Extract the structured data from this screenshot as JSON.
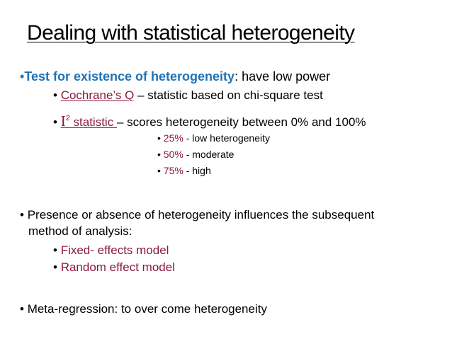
{
  "title": "Dealing with statistical heterogeneity",
  "bullet": "•",
  "b1": {
    "lead": "Test for existence of heterogeneity",
    "rest": ": have low power",
    "sub1": {
      "link": "Cochrane’s Q",
      "rest": " – statistic based on chi-square test"
    },
    "sub2": {
      "i_letter": "I",
      "sup": "2",
      "link": " statistic ",
      "rest": "– scores heterogeneity between 0% and 100%"
    },
    "levels": [
      {
        "pct": "25%",
        "label": " - low heterogeneity"
      },
      {
        "pct": "50%",
        "label": " - moderate"
      },
      {
        "pct": "75%",
        "label": " - high"
      }
    ]
  },
  "b2": {
    "line1": "Presence or absence of heterogeneity influences the subsequent",
    "line2": "method of analysis:",
    "models": [
      "Fixed- effects model",
      "Random effect model"
    ]
  },
  "b3": {
    "text": "Meta-regression: to over come heterogeneity"
  },
  "colors": {
    "accent_blue": "#1f73b7",
    "accent_red": "#8b1a3a"
  }
}
